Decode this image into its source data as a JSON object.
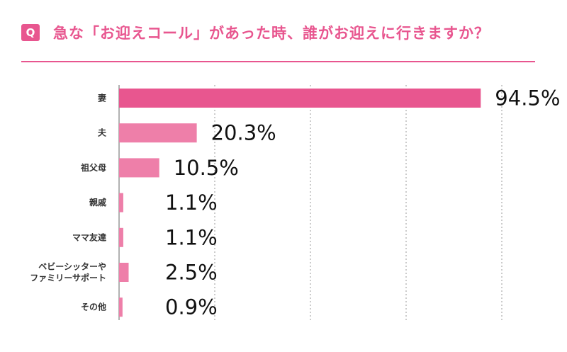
{
  "header": {
    "badge": "Q",
    "title": "急な「お迎えコール」があった時、誰がお迎えに行きますか？"
  },
  "colors": {
    "accent": "#e8568f",
    "bar_primary": "#e8568f",
    "bar_secondary": "#ee7fa9",
    "grid": "#999999"
  },
  "chart_data": {
    "type": "bar",
    "orientation": "horizontal",
    "categories": [
      [
        "妻"
      ],
      [
        "夫"
      ],
      [
        "祖父母"
      ],
      [
        "親戚"
      ],
      [
        "ママ友達"
      ],
      [
        "ベビーシッターや",
        "ファミリーサポート"
      ],
      [
        "その他"
      ]
    ],
    "values": [
      94.5,
      20.3,
      10.5,
      1.1,
      1.1,
      2.5,
      0.9
    ],
    "value_labels": [
      "94.5%",
      "20.3%",
      "10.5%",
      "1.1%",
      "1.1%",
      "2.5%",
      "0.9%"
    ],
    "xlim": [
      0,
      100
    ],
    "grid": true
  }
}
